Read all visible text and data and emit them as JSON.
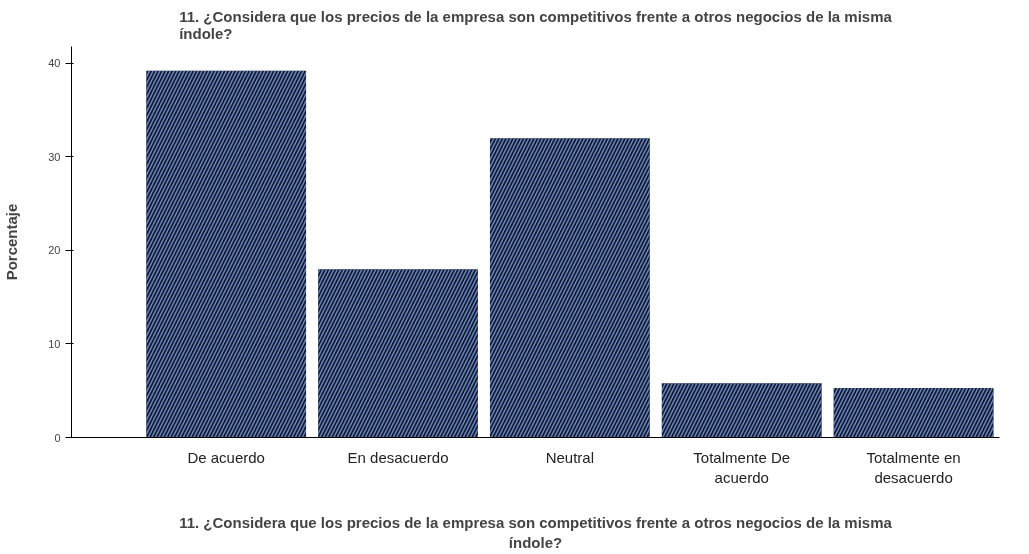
{
  "chart_data": {
    "type": "bar",
    "title": "11. ¿Considera que los precios de la empresa son competitivos frente a otros negocios de la misma índole?",
    "xlabel": "11. ¿Considera que los precios de la empresa son competitivos frente a otros negocios de la misma índole?",
    "ylabel": "Porcentaje",
    "categories": [
      "De acuerdo",
      "En desacuerdo",
      "Neutral",
      "Totalmente De acuerdo",
      "Totalmente en desacuerdo"
    ],
    "values": [
      39.2,
      18.0,
      32.0,
      5.8,
      5.3
    ],
    "color": "#0f1a33",
    "ylim": [
      0,
      41.8
    ],
    "yticks": [
      0,
      10,
      20,
      30,
      40
    ],
    "grid": false
  }
}
